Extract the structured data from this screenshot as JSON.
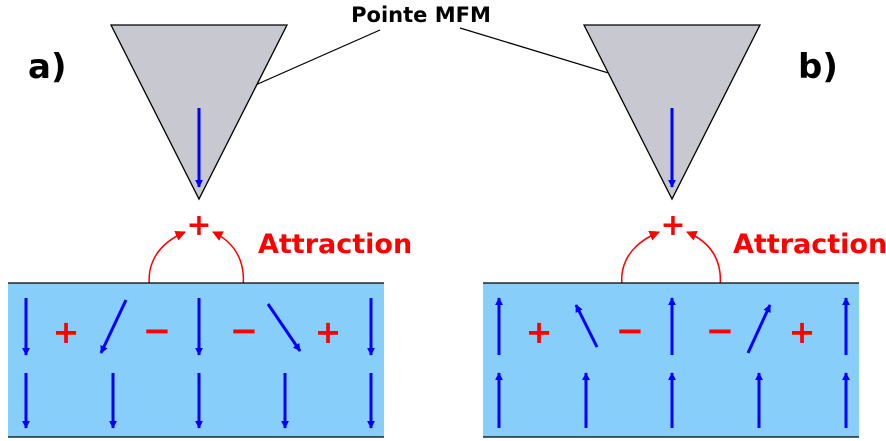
{
  "title": "Pointe MFM",
  "panels": [
    {
      "label": "a)",
      "attraction": "Attraction",
      "tip_charge": "+",
      "surface_charges": [
        "+",
        "−",
        "−",
        "+"
      ]
    },
    {
      "label": "b)",
      "attraction": "Attraction",
      "tip_charge": "+",
      "surface_charges": [
        "+",
        "−",
        "−",
        "+"
      ]
    }
  ],
  "colors": {
    "tip": "#c8c8d0",
    "sample": "#87cefa",
    "magnetization": "#0000ff",
    "charge": "#ff0000",
    "outline": "#000000"
  }
}
